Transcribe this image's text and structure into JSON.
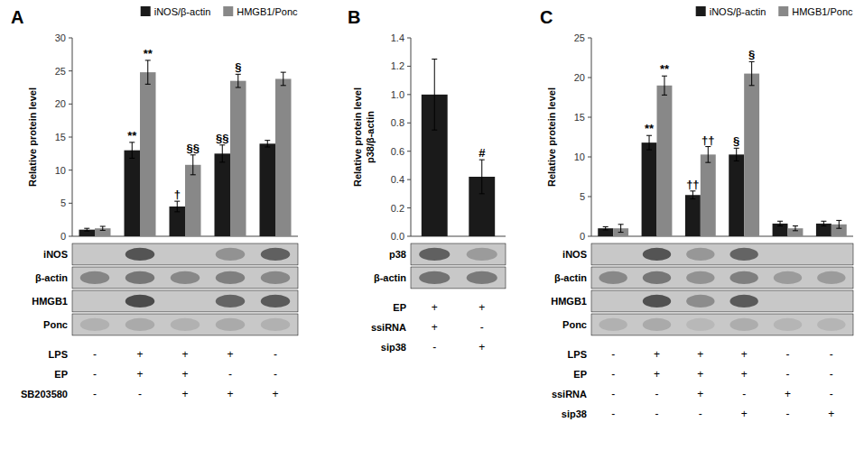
{
  "chart_data": [
    {
      "type": "bar",
      "title": "A",
      "y_label": "Relative protein level",
      "ylim": [
        0,
        30
      ],
      "yticks": [
        0,
        5,
        10,
        15,
        20,
        25,
        30
      ],
      "legend": "upper right",
      "series": [
        {
          "name": "iNOS/β-actin",
          "color": "#1a1a1a",
          "values": [
            1.0,
            13.0,
            4.5,
            12.5,
            14.0
          ],
          "errors": [
            0.2,
            1.2,
            0.8,
            1.3,
            0.5
          ],
          "annotations": [
            null,
            "**",
            "†",
            "§§",
            null
          ]
        },
        {
          "name": "HMGB1/Ponc",
          "color": "#888888",
          "values": [
            1.2,
            24.8,
            10.8,
            23.5,
            23.8
          ],
          "errors": [
            0.3,
            1.8,
            1.5,
            1.0,
            1.0
          ],
          "annotations": [
            null,
            "**",
            "§§",
            "§",
            null
          ]
        }
      ],
      "blot": [
        {
          "label": "iNOS",
          "lanes": [
            1,
            3,
            4
          ],
          "intensities": [
            0.88,
            0.55,
            0.82
          ]
        },
        {
          "label": "β-actin",
          "lanes": [
            0,
            1,
            2,
            3,
            4
          ],
          "intensities": [
            0.62,
            0.7,
            0.6,
            0.65,
            0.6
          ]
        },
        {
          "label": "HMGB1",
          "lanes": [
            1,
            3,
            4
          ],
          "intensities": [
            0.93,
            0.8,
            0.85
          ]
        },
        {
          "label": "Ponc",
          "lanes": [
            0,
            1,
            2,
            3,
            4
          ],
          "intensities": [
            0.38,
            0.42,
            0.38,
            0.42,
            0.38
          ]
        }
      ],
      "treatments": [
        {
          "label": "LPS",
          "values": [
            "-",
            "+",
            "+",
            "+",
            "-"
          ]
        },
        {
          "label": "EP",
          "values": [
            "-",
            "+",
            "+",
            "-",
            "-"
          ]
        },
        {
          "label": "SB203580",
          "values": [
            "-",
            "-",
            "+",
            "+",
            "+"
          ]
        }
      ]
    },
    {
      "type": "bar",
      "title": "B",
      "y_label": "Relative protein level\np38/β-actin",
      "ylim": [
        0,
        1.4
      ],
      "yticks": [
        {
          "value": 0,
          "label": "0.0"
        },
        0.2,
        0.4,
        0.6,
        0.8,
        {
          "value": 1.0,
          "label": "1.0"
        },
        1.2,
        1.4
      ],
      "series": [
        {
          "color": "#1a1a1a",
          "values": [
            1.0,
            0.42
          ],
          "errors": [
            0.25,
            0.12
          ],
          "annotations": [
            null,
            "#"
          ]
        }
      ],
      "blot": [
        {
          "label": "p38",
          "lanes": [
            0,
            1
          ],
          "intensities": [
            0.82,
            0.5
          ]
        },
        {
          "label": "β-actin",
          "lanes": [
            0,
            1
          ],
          "intensities": [
            0.72,
            0.68
          ]
        }
      ],
      "treatments": [
        {
          "label": "EP",
          "values": [
            "+",
            "+"
          ]
        },
        {
          "label": "ssiRNA",
          "values": [
            "+",
            "-"
          ]
        },
        {
          "label": "sip38",
          "values": [
            "-",
            "+"
          ]
        }
      ]
    },
    {
      "type": "bar",
      "title": "C",
      "y_label": "Relative protein level",
      "ylim": [
        0,
        25
      ],
      "yticks": [
        0,
        5,
        10,
        15,
        20,
        25
      ],
      "legend": "upper right",
      "series": [
        {
          "name": "iNOS/β-actin",
          "color": "#1a1a1a",
          "values": [
            1.0,
            11.8,
            5.2,
            10.3,
            1.6,
            1.6
          ],
          "errors": [
            0.2,
            0.9,
            0.5,
            0.8,
            0.3,
            0.3
          ],
          "annotations": [
            null,
            "**",
            "††",
            "§",
            null,
            null
          ]
        },
        {
          "name": "HMGB1/Ponc",
          "color": "#888888",
          "values": [
            1.0,
            19.0,
            10.3,
            20.5,
            1.0,
            1.5
          ],
          "errors": [
            0.5,
            1.2,
            1.0,
            1.5,
            0.3,
            0.5
          ],
          "annotations": [
            null,
            "**",
            "††",
            "§",
            null,
            null
          ]
        }
      ],
      "blot": [
        {
          "label": "iNOS",
          "lanes": [
            1,
            2,
            3
          ],
          "intensities": [
            0.88,
            0.52,
            0.8
          ]
        },
        {
          "label": "β-actin",
          "lanes": [
            0,
            1,
            2,
            3,
            4,
            5
          ],
          "intensities": [
            0.6,
            0.7,
            0.55,
            0.65,
            0.5,
            0.5
          ]
        },
        {
          "label": "HMGB1",
          "lanes": [
            1,
            2,
            3
          ],
          "intensities": [
            0.9,
            0.58,
            0.85
          ]
        },
        {
          "label": "Ponc",
          "lanes": [
            0,
            1,
            2,
            3,
            4,
            5
          ],
          "intensities": [
            0.38,
            0.42,
            0.34,
            0.4,
            0.36,
            0.36
          ]
        }
      ],
      "treatments": [
        {
          "label": "LPS",
          "values": [
            "-",
            "+",
            "+",
            "+",
            "-",
            "-"
          ]
        },
        {
          "label": "EP",
          "values": [
            "-",
            "+",
            "+",
            "+",
            "-",
            "-"
          ]
        },
        {
          "label": "ssiRNA",
          "values": [
            "-",
            "-",
            "+",
            "-",
            "+",
            "-"
          ]
        },
        {
          "label": "sip38",
          "values": [
            "-",
            "-",
            "-",
            "+",
            "-",
            "+"
          ]
        }
      ]
    }
  ]
}
